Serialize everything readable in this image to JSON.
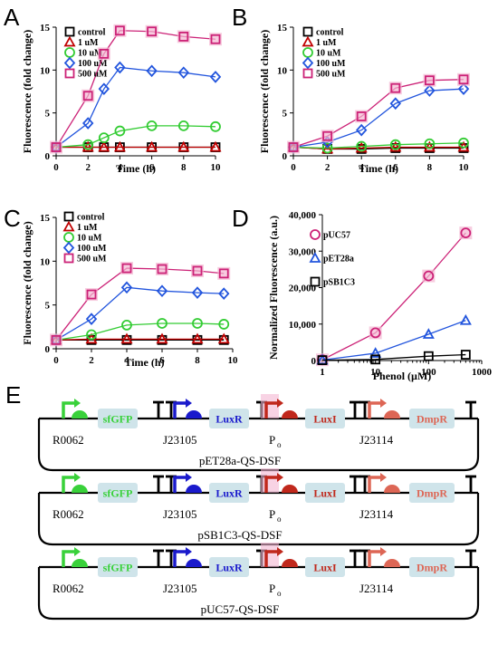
{
  "panels": {
    "A": "A",
    "B": "B",
    "C": "C",
    "D": "D",
    "E": "E"
  },
  "colors": {
    "control": "#000000",
    "1uM": "#c00000",
    "10uM": "#33cc33",
    "100uM": "#2255dd",
    "500uM": "#cc2277",
    "halo": "#f4b6d2",
    "sfGFP": "#39d13a",
    "J23105": "#1a1acc",
    "Po": "#c0281c",
    "J23114": "#dd6655",
    "gene_box": "#cfe4ea"
  },
  "chart_data": [
    {
      "panel": "A",
      "type": "line",
      "xlabel": "Time (h)",
      "ylabel": "Fluorescence  (fold change)",
      "xlim": [
        0,
        10
      ],
      "ylim": [
        0,
        15
      ],
      "x_ticks": [
        "0",
        "2",
        "4",
        "6",
        "8",
        "10"
      ],
      "y_ticks": [
        "0",
        "5",
        "10",
        "15"
      ],
      "legend_position": "top-left",
      "series": [
        {
          "name": "control",
          "marker": "square",
          "color_key": "control",
          "x": [
            0,
            2,
            3,
            4,
            6,
            8,
            10
          ],
          "y": [
            1,
            1,
            1,
            1,
            1,
            1,
            1
          ]
        },
        {
          "name": "1 uM",
          "marker": "triangle",
          "color_key": "1uM",
          "x": [
            0,
            2,
            3,
            4,
            6,
            8,
            10
          ],
          "y": [
            1,
            1,
            1,
            1,
            1,
            1,
            1
          ]
        },
        {
          "name": "10 uM",
          "marker": "circle",
          "color_key": "10uM",
          "x": [
            0,
            2,
            3,
            4,
            6,
            8,
            10
          ],
          "y": [
            1,
            1.3,
            2.1,
            2.9,
            3.5,
            3.5,
            3.4
          ]
        },
        {
          "name": "100 uM",
          "marker": "diamond",
          "color_key": "100uM",
          "x": [
            0,
            2,
            3,
            4,
            6,
            8,
            10
          ],
          "y": [
            1,
            3.8,
            7.8,
            10.3,
            9.9,
            9.7,
            9.2
          ]
        },
        {
          "name": "500 uM",
          "marker": "square",
          "color_key": "500uM",
          "x": [
            0,
            2,
            3,
            4,
            6,
            8,
            10
          ],
          "y": [
            1,
            7,
            11.9,
            14.6,
            14.5,
            13.9,
            13.6
          ]
        }
      ]
    },
    {
      "panel": "B",
      "type": "line",
      "xlabel": "Time (h)",
      "ylabel": "Fluorescence  (fold change)",
      "xlim": [
        0,
        10
      ],
      "ylim": [
        0,
        15
      ],
      "x_ticks": [
        "0",
        "2",
        "4",
        "6",
        "8",
        "10"
      ],
      "y_ticks": [
        "0",
        "5",
        "10",
        "15"
      ],
      "legend_position": "top-left",
      "series": [
        {
          "name": "control",
          "marker": "square",
          "color_key": "control",
          "x": [
            0,
            2,
            4,
            6,
            8,
            10
          ],
          "y": [
            1,
            0.8,
            0.8,
            0.9,
            0.9,
            0.9
          ]
        },
        {
          "name": "1 uM",
          "marker": "triangle",
          "color_key": "1uM",
          "x": [
            0,
            2,
            4,
            6,
            8,
            10
          ],
          "y": [
            1,
            0.8,
            0.9,
            1.0,
            1.0,
            1.0
          ]
        },
        {
          "name": "10 uM",
          "marker": "circle",
          "color_key": "10uM",
          "x": [
            0,
            2,
            4,
            6,
            8,
            10
          ],
          "y": [
            1,
            0.9,
            1.1,
            1.3,
            1.4,
            1.5
          ]
        },
        {
          "name": "100 uM",
          "marker": "diamond",
          "color_key": "100uM",
          "x": [
            0,
            2,
            4,
            6,
            8,
            10
          ],
          "y": [
            1,
            1.6,
            3.0,
            6.1,
            7.6,
            7.8
          ]
        },
        {
          "name": "500 uM",
          "marker": "square",
          "color_key": "500uM",
          "x": [
            0,
            2,
            4,
            6,
            8,
            10
          ],
          "y": [
            1,
            2.3,
            4.6,
            7.9,
            8.8,
            8.9
          ]
        }
      ]
    },
    {
      "panel": "C",
      "type": "line",
      "xlabel": "Time (h)",
      "ylabel": "Fluorescence  (fold change)",
      "xlim": [
        0,
        10
      ],
      "ylim": [
        0,
        15
      ],
      "x_ticks": [
        "0",
        "2",
        "4",
        "6",
        "8",
        "10"
      ],
      "y_ticks": [
        "0",
        "5",
        "10",
        "15"
      ],
      "legend_position": "top-left",
      "series": [
        {
          "name": "control",
          "marker": "square",
          "color_key": "control",
          "x": [
            0,
            2,
            4,
            6,
            8,
            9.5
          ],
          "y": [
            1,
            1,
            1,
            1,
            1,
            1
          ]
        },
        {
          "name": "1 uM",
          "marker": "triangle",
          "color_key": "1uM",
          "x": [
            0,
            2,
            4,
            6,
            8,
            9.5
          ],
          "y": [
            1,
            1.1,
            1.1,
            1.1,
            1.1,
            1.1
          ]
        },
        {
          "name": "10 uM",
          "marker": "circle",
          "color_key": "10uM",
          "x": [
            0,
            2,
            4,
            6,
            8,
            9.5
          ],
          "y": [
            1,
            1.6,
            2.7,
            2.9,
            2.9,
            2.8
          ]
        },
        {
          "name": "100 uM",
          "marker": "diamond",
          "color_key": "100uM",
          "x": [
            0,
            2,
            4,
            6,
            8,
            9.5
          ],
          "y": [
            1,
            3.4,
            7.0,
            6.6,
            6.4,
            6.3
          ]
        },
        {
          "name": "500 uM",
          "marker": "square",
          "color_key": "500uM",
          "x": [
            0,
            2,
            4,
            6,
            8,
            9.5
          ],
          "y": [
            1,
            6.2,
            9.2,
            9.1,
            8.9,
            8.6
          ]
        }
      ]
    },
    {
      "panel": "D",
      "type": "line",
      "x_scale": "log",
      "xlabel": "Phenol (µM)",
      "ylabel": "Normalized Fluorescence (a.u.)",
      "xlim": [
        1,
        1000
      ],
      "ylim": [
        0,
        40000
      ],
      "x_ticks": [
        "1",
        "10",
        "100",
        "1000"
      ],
      "y_ticks": [
        "0",
        "10,000",
        "20,000",
        "30,000",
        "40,000"
      ],
      "legend_position": "top-left",
      "series": [
        {
          "name": "pUC57",
          "marker": "circle",
          "color_key": "500uM",
          "x": [
            1,
            10,
            100,
            500
          ],
          "y": [
            200,
            7600,
            23200,
            35000
          ]
        },
        {
          "name": "pET28a",
          "marker": "triangle",
          "color_key": "100uM",
          "x": [
            1,
            10,
            100,
            500
          ],
          "y": [
            150,
            2000,
            7200,
            11000
          ]
        },
        {
          "name": "pSB1C3",
          "marker": "square",
          "color_key": "control",
          "x": [
            1,
            10,
            100,
            500
          ],
          "y": [
            100,
            300,
            1200,
            1600
          ]
        }
      ]
    }
  ],
  "constructs": [
    {
      "name": "pET28a-QS-DSF",
      "parts": [
        "R0062",
        "sfGFP",
        "J23105",
        "LuxR",
        "P",
        "o",
        "LuxI",
        "J23114",
        "DmpR"
      ]
    },
    {
      "name": "pSB1C3-QS-DSF",
      "parts": [
        "R0062",
        "sfGFP",
        "J23105",
        "LuxR",
        "P",
        "o",
        "LuxI",
        "J23114",
        "DmpR"
      ]
    },
    {
      "name": "pUC57-QS-DSF",
      "parts": [
        "R0062",
        "sfGFP",
        "J23105",
        "LuxR",
        "P",
        "o",
        "LuxI",
        "J23114",
        "DmpR"
      ]
    }
  ]
}
